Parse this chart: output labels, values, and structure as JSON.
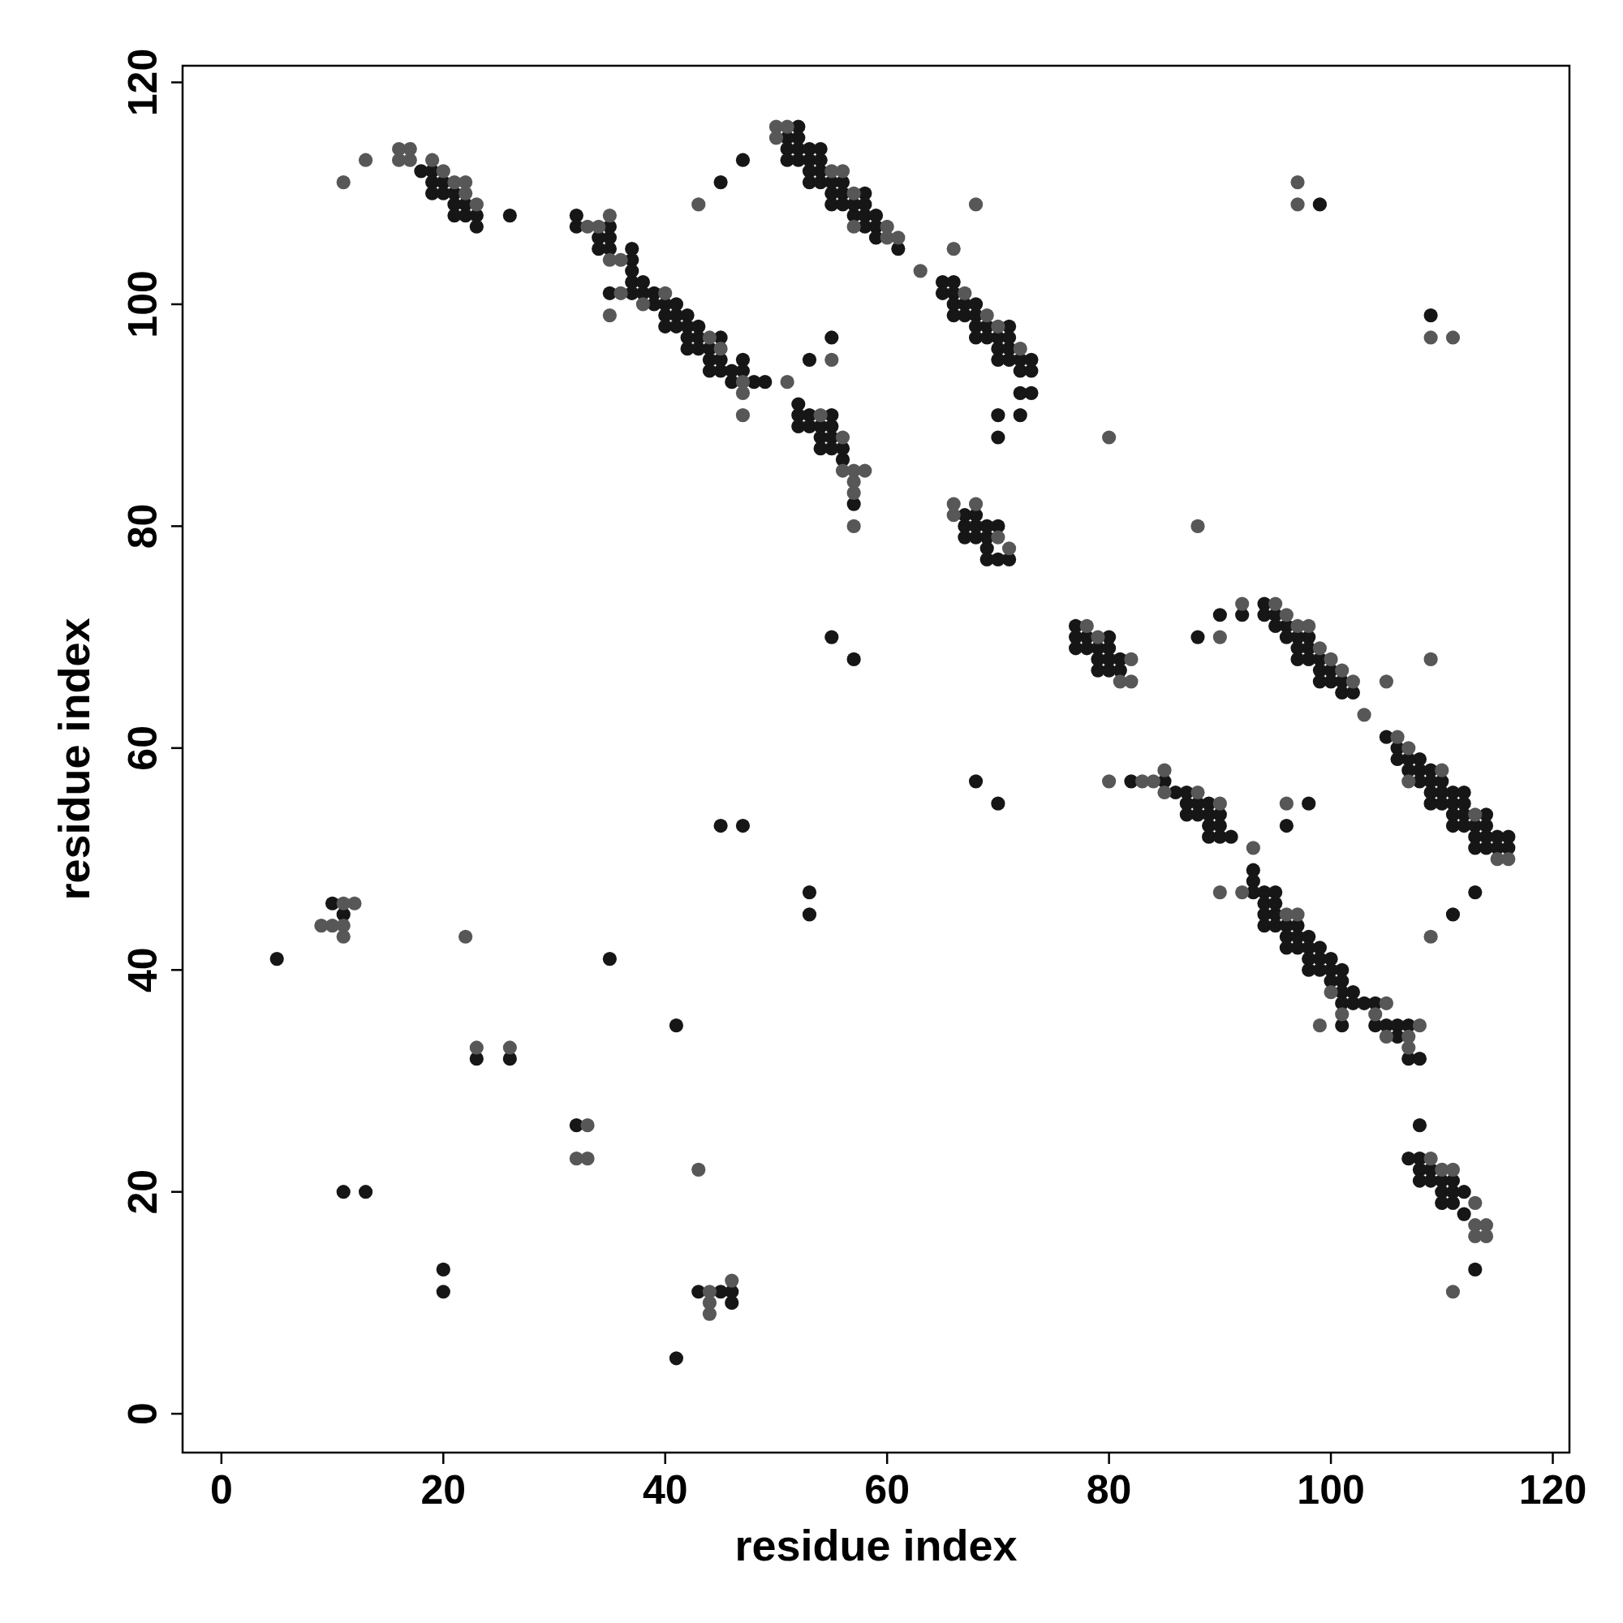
{
  "chart_data": {
    "type": "scatter",
    "xlabel": "residue index",
    "ylabel": "residue index",
    "xlim": [
      -3.5,
      121.5
    ],
    "ylim": [
      -3.5,
      121.5
    ],
    "xticks": [
      0,
      20,
      40,
      60,
      80,
      100,
      120
    ],
    "yticks": [
      0,
      20,
      40,
      60,
      80,
      100,
      120
    ],
    "marker": "circle",
    "grid": false,
    "series": [
      {
        "color": "#161616",
        "x": [
          18,
          19,
          19,
          19,
          20,
          20,
          21,
          21,
          21,
          22,
          22,
          23,
          23,
          26,
          32,
          32,
          34,
          34,
          35,
          35,
          35,
          35,
          37,
          37,
          37,
          37,
          37,
          38,
          38,
          39,
          39,
          40,
          40,
          40,
          41,
          41,
          41,
          42,
          42,
          42,
          42,
          43,
          43,
          43,
          44,
          44,
          44,
          45,
          45,
          45,
          46,
          46,
          47,
          47,
          48,
          49,
          45,
          47,
          51,
          51,
          51,
          52,
          52,
          52,
          52,
          53,
          53,
          53,
          53,
          54,
          54,
          54,
          54,
          55,
          55,
          55,
          56,
          56,
          56,
          57,
          57,
          58,
          58,
          58,
          58,
          59,
          59,
          59,
          61,
          53,
          55,
          52,
          52,
          52,
          53,
          53,
          54,
          54,
          54,
          55,
          55,
          55,
          55,
          56,
          56,
          57,
          65,
          65,
          66,
          66,
          66,
          66,
          67,
          67,
          68,
          68,
          68,
          68,
          69,
          69,
          70,
          70,
          70,
          71,
          71,
          71,
          71,
          72,
          72,
          72,
          72,
          73,
          73,
          73,
          70,
          70,
          67,
          67,
          67,
          68,
          68,
          68,
          69,
          69,
          69,
          69,
          70,
          70,
          71,
          55,
          57,
          68,
          70,
          45,
          47,
          53,
          53,
          77,
          77,
          77,
          78,
          78,
          79,
          79,
          79,
          80,
          80,
          80,
          80,
          81,
          81,
          88,
          90,
          92,
          94,
          94,
          95,
          95,
          96,
          96,
          97,
          97,
          97,
          98,
          98,
          98,
          99,
          99,
          99,
          100,
          100,
          101,
          101,
          102,
          105,
          106,
          106,
          107,
          107,
          108,
          108,
          108,
          109,
          109,
          109,
          109,
          110,
          110,
          110,
          111,
          111,
          111,
          111,
          112,
          112,
          112,
          112,
          113,
          113,
          113,
          114,
          114,
          114,
          114,
          115,
          115,
          116,
          116,
          82,
          85,
          86,
          87,
          87,
          87,
          88,
          88,
          89,
          89,
          89,
          89,
          90,
          90,
          90,
          91,
          98,
          96,
          93,
          93,
          93,
          94,
          94,
          94,
          94,
          95,
          95,
          95,
          95,
          96,
          96,
          96,
          97,
          97,
          97,
          98,
          98,
          98,
          98,
          99,
          99,
          99,
          100,
          100,
          100,
          101,
          101,
          101,
          101,
          101,
          102,
          102,
          103,
          104,
          104,
          105,
          106,
          106,
          107,
          107,
          108,
          111,
          113,
          108,
          107,
          108,
          108,
          108,
          109,
          109,
          110,
          110,
          110,
          111,
          111,
          111,
          112,
          112,
          113,
          99,
          109,
          5,
          10,
          11,
          35,
          23,
          26,
          32,
          41,
          11,
          13,
          20,
          20,
          43,
          45,
          46,
          46,
          41
        ],
        "values": [
          112,
          112,
          111,
          110,
          111,
          110,
          110,
          109,
          108,
          109,
          108,
          108,
          107,
          108,
          108,
          107,
          106,
          105,
          107,
          106,
          105,
          101,
          105,
          104,
          103,
          102,
          101,
          102,
          101,
          101,
          100,
          100,
          99,
          98,
          100,
          99,
          98,
          99,
          98,
          97,
          96,
          98,
          97,
          96,
          96,
          95,
          94,
          97,
          95,
          94,
          94,
          93,
          95,
          94,
          93,
          93,
          111,
          113,
          115,
          114,
          113,
          116,
          115,
          114,
          113,
          114,
          113,
          112,
          111,
          114,
          113,
          112,
          111,
          111,
          110,
          109,
          111,
          110,
          109,
          109,
          108,
          110,
          109,
          108,
          107,
          108,
          107,
          106,
          105,
          95,
          97,
          91,
          90,
          89,
          90,
          89,
          89,
          88,
          87,
          90,
          89,
          88,
          87,
          87,
          86,
          82,
          102,
          101,
          102,
          101,
          100,
          99,
          100,
          99,
          100,
          99,
          98,
          97,
          98,
          97,
          97,
          96,
          95,
          98,
          97,
          96,
          95,
          95,
          94,
          92,
          90,
          95,
          94,
          92,
          90,
          88,
          80,
          79,
          81,
          81,
          80,
          79,
          80,
          79,
          78,
          77,
          80,
          77,
          77,
          70,
          68,
          57,
          55,
          53,
          53,
          47,
          45,
          71,
          70,
          69,
          70,
          69,
          69,
          68,
          67,
          70,
          69,
          68,
          67,
          68,
          67,
          70,
          72,
          72,
          73,
          72,
          72,
          71,
          71,
          70,
          70,
          69,
          68,
          70,
          69,
          68,
          68,
          67,
          66,
          67,
          66,
          66,
          65,
          65,
          61,
          60,
          59,
          59,
          58,
          59,
          58,
          57,
          58,
          57,
          56,
          55,
          57,
          56,
          55,
          56,
          55,
          54,
          53,
          56,
          55,
          54,
          53,
          53,
          52,
          51,
          54,
          53,
          52,
          51,
          52,
          51,
          52,
          51,
          57,
          57,
          56,
          56,
          55,
          54,
          55,
          54,
          55,
          54,
          53,
          52,
          54,
          53,
          52,
          52,
          55,
          53,
          49,
          48,
          47,
          47,
          46,
          45,
          44,
          47,
          46,
          45,
          44,
          44,
          43,
          42,
          44,
          43,
          42,
          43,
          42,
          41,
          40,
          42,
          41,
          40,
          41,
          40,
          39,
          40,
          39,
          38,
          37,
          35,
          38,
          37,
          37,
          37,
          35,
          35,
          35,
          34,
          35,
          32,
          32,
          45,
          47,
          26,
          23,
          23,
          22,
          21,
          22,
          21,
          21,
          20,
          19,
          21,
          20,
          19,
          20,
          18,
          13,
          109,
          99,
          41,
          46,
          45,
          41,
          32,
          32,
          26,
          35,
          20,
          20,
          13,
          11,
          11,
          11,
          11,
          10,
          5
        ]
      },
      {
        "color": "#575757",
        "x": [
          11,
          13,
          16,
          16,
          17,
          17,
          19,
          20,
          21,
          22,
          22,
          23,
          33,
          34,
          35,
          35,
          35,
          36,
          36,
          38,
          40,
          44,
          45,
          47,
          47,
          47,
          43,
          50,
          50,
          51,
          55,
          56,
          57,
          57,
          60,
          60,
          61,
          63,
          51,
          55,
          54,
          56,
          56,
          57,
          57,
          57,
          57,
          58,
          66,
          68,
          67,
          69,
          70,
          72,
          66,
          66,
          68,
          70,
          71,
          80,
          88,
          78,
          79,
          81,
          82,
          82,
          90,
          92,
          95,
          96,
          97,
          98,
          99,
          100,
          101,
          102,
          103,
          105,
          106,
          107,
          107,
          110,
          113,
          115,
          116,
          109,
          80,
          83,
          84,
          85,
          85,
          88,
          90,
          96,
          90,
          92,
          93,
          96,
          97,
          99,
          100,
          101,
          104,
          105,
          105,
          107,
          107,
          108,
          109,
          109,
          110,
          111,
          113,
          113,
          113,
          114,
          114,
          111,
          97,
          97,
          109,
          111,
          9,
          10,
          11,
          11,
          11,
          12,
          22,
          23,
          26,
          32,
          33,
          33,
          43,
          44,
          44,
          44,
          46
        ],
        "values": [
          111,
          113,
          114,
          113,
          114,
          113,
          113,
          112,
          111,
          111,
          110,
          109,
          107,
          107,
          108,
          104,
          99,
          104,
          101,
          100,
          101,
          97,
          96,
          93,
          92,
          90,
          109,
          116,
          115,
          116,
          112,
          112,
          110,
          107,
          107,
          106,
          106,
          103,
          93,
          95,
          90,
          88,
          85,
          85,
          84,
          83,
          80,
          85,
          105,
          109,
          101,
          99,
          98,
          96,
          82,
          81,
          82,
          79,
          78,
          88,
          80,
          71,
          70,
          66,
          68,
          66,
          70,
          73,
          73,
          72,
          71,
          71,
          69,
          68,
          67,
          66,
          63,
          66,
          61,
          60,
          57,
          58,
          54,
          50,
          50,
          68,
          57,
          57,
          57,
          58,
          56,
          56,
          55,
          55,
          47,
          47,
          51,
          45,
          45,
          35,
          38,
          36,
          36,
          37,
          34,
          34,
          33,
          35,
          43,
          23,
          22,
          22,
          19,
          17,
          16,
          17,
          16,
          11,
          111,
          109,
          97,
          97,
          44,
          44,
          46,
          44,
          43,
          46,
          43,
          33,
          33,
          23,
          26,
          23,
          22,
          11,
          10,
          9,
          12
        ]
      }
    ]
  }
}
